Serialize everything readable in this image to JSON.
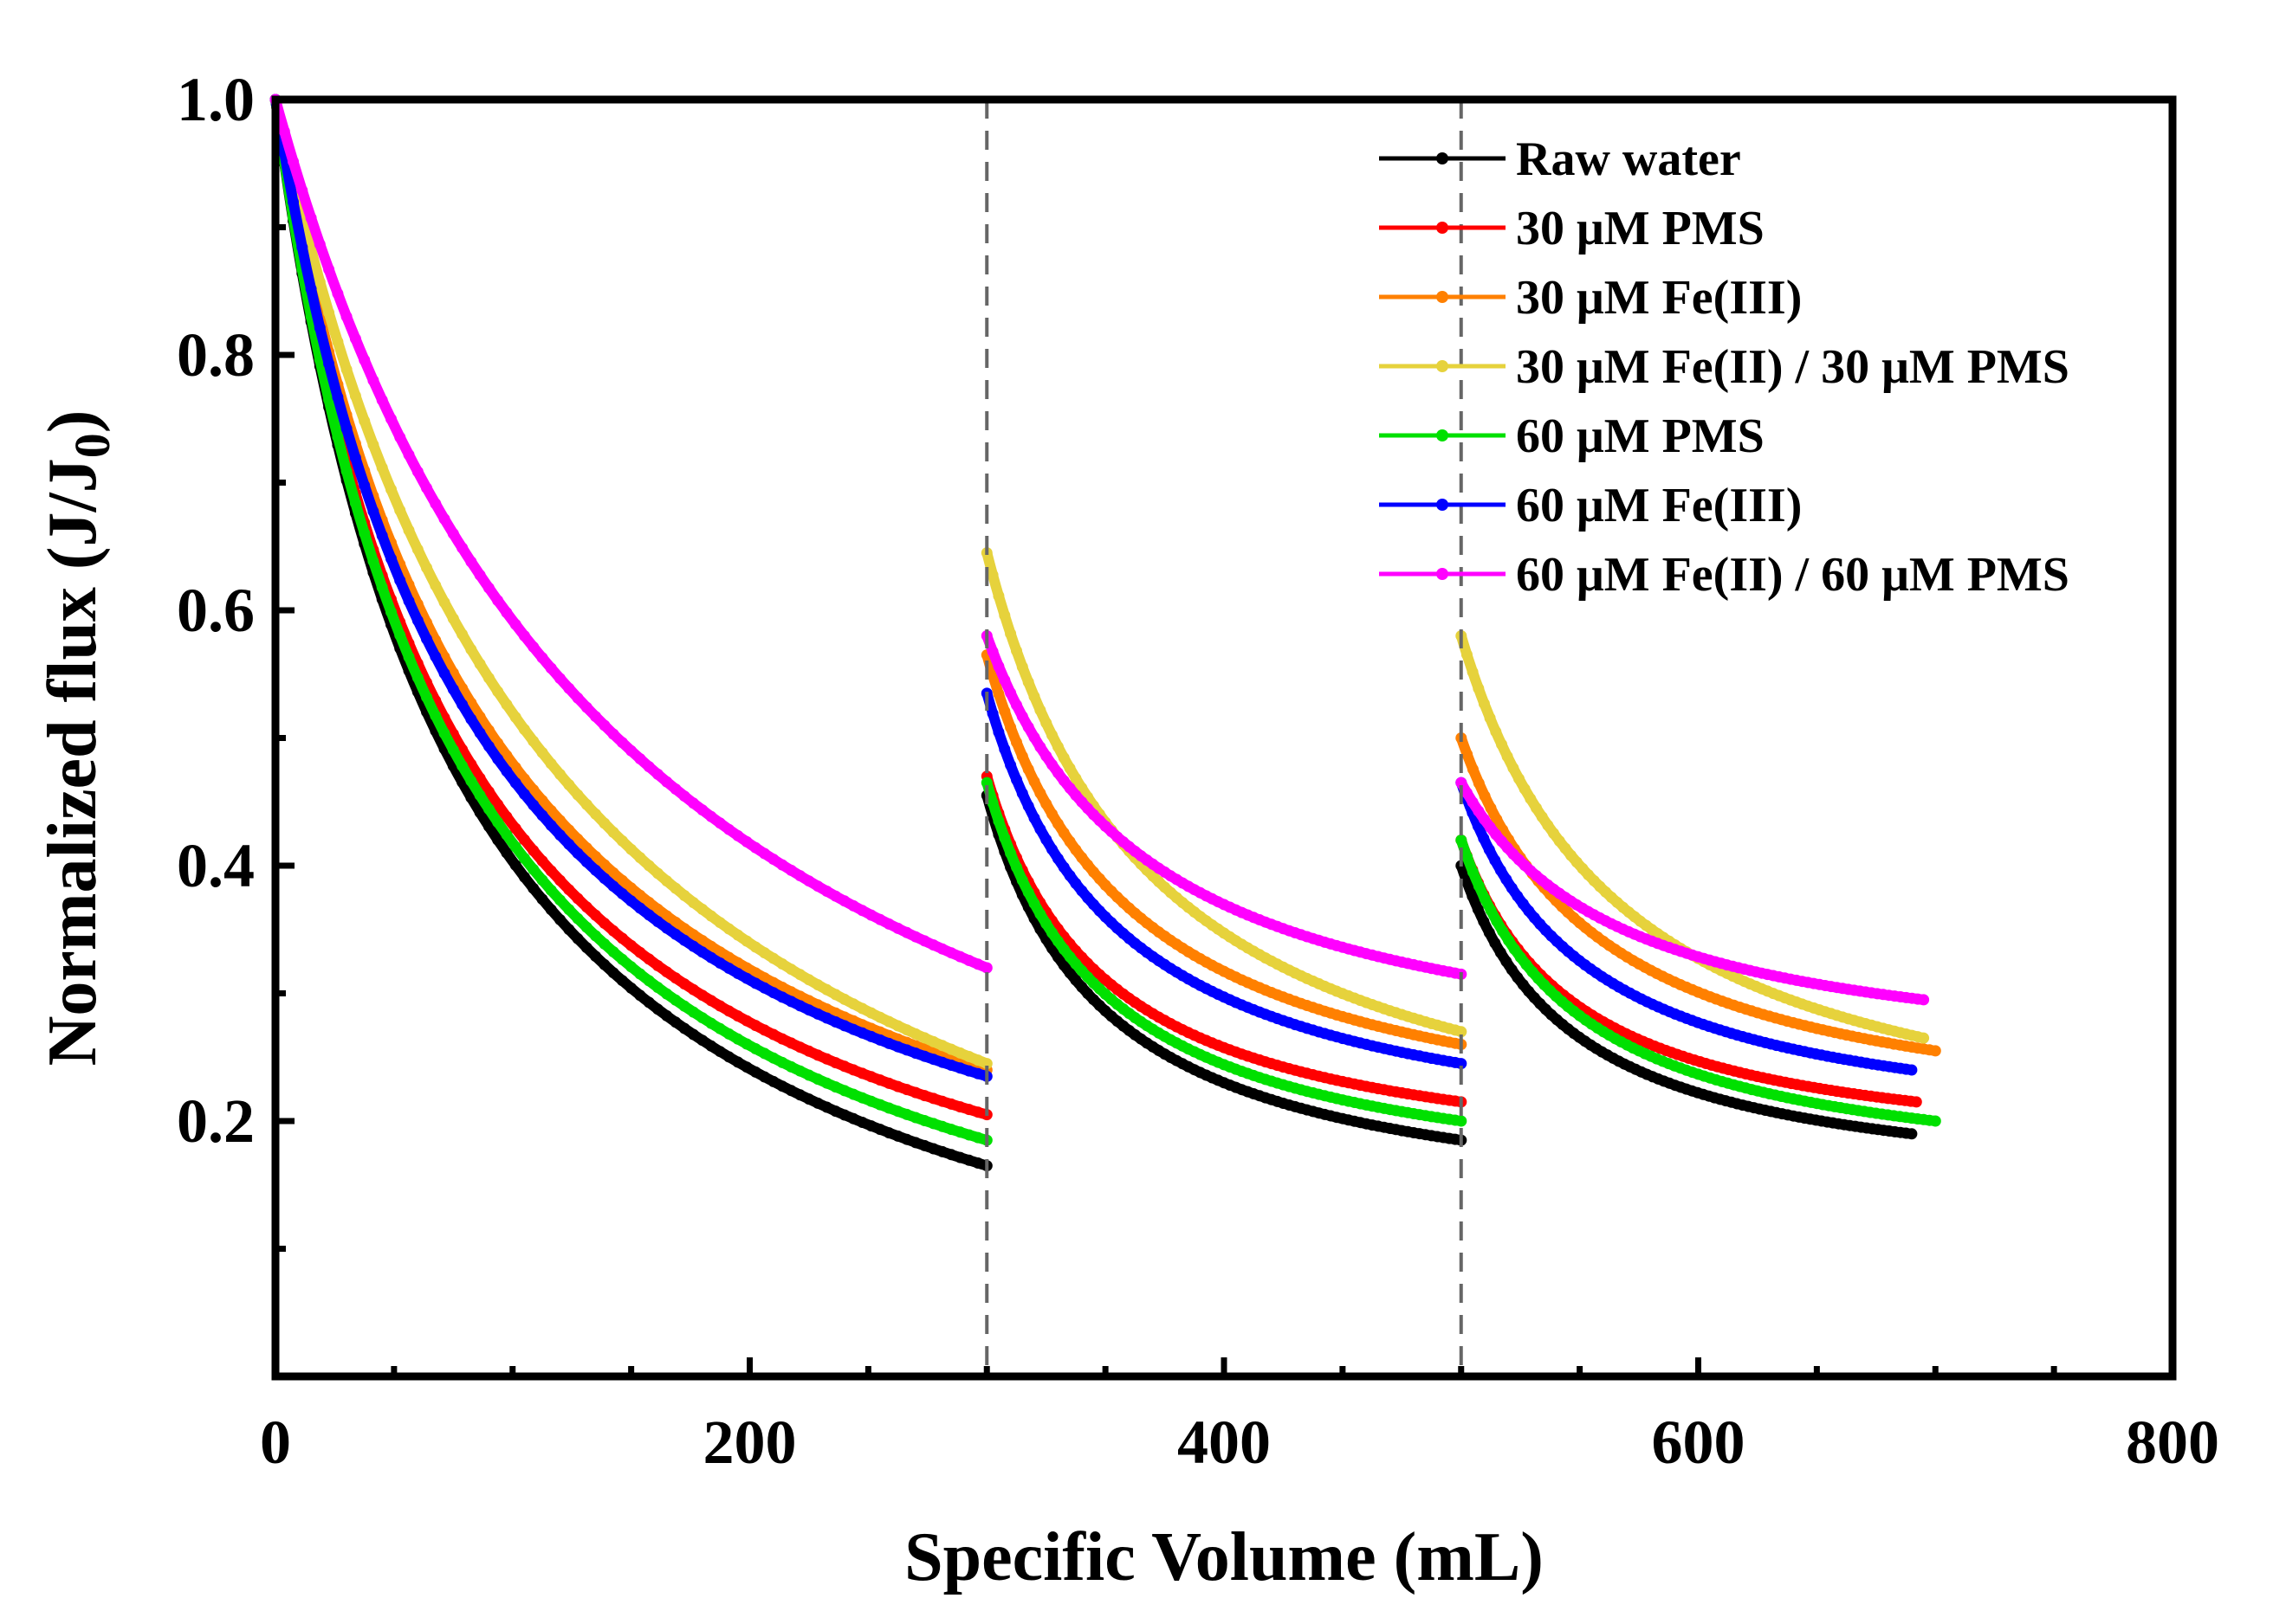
{
  "chart_data": {
    "type": "line",
    "title": "",
    "xlabel": "Specific Volume (mL)",
    "ylabel": "Normalized flux (J/J0)",
    "ylabel_main": "Normalized flux (J/J",
    "ylabel_sub": "0",
    "ylabel_close": ")",
    "xlim": [
      0,
      800
    ],
    "ylim": [
      0,
      1.0
    ],
    "x_ticks": [
      0,
      200,
      400,
      600,
      800
    ],
    "x_tick_labels": [
      "0",
      "200",
      "400",
      "600",
      "800"
    ],
    "y_ticks": [
      0.2,
      0.4,
      0.6,
      0.8,
      1.0
    ],
    "y_tick_labels": [
      "0.2",
      "0.4",
      "0.6",
      "0.8",
      "1.0"
    ],
    "x_minor_step": 50,
    "y_minor_step": 0.1,
    "vertical_dashed_lines": [
      300,
      500
    ],
    "legend_position": "top-right",
    "grid": false,
    "series": [
      {
        "name": "Raw water",
        "color": "#000000",
        "segments": [
          {
            "x_start": 0,
            "x_end": 300,
            "y_start": 1.0,
            "y_end": 0.165,
            "shape": 0.25
          },
          {
            "x_start": 300,
            "x_end": 500,
            "y_start": 0.455,
            "y_end": 0.185,
            "shape": 0.25
          },
          {
            "x_start": 500,
            "x_end": 690,
            "y_start": 0.4,
            "y_end": 0.19,
            "shape": 0.25
          }
        ]
      },
      {
        "name": "30 μM PMS",
        "color": "#ff0000",
        "segments": [
          {
            "x_start": 0,
            "x_end": 300,
            "y_start": 1.0,
            "y_end": 0.205,
            "shape": 0.25
          },
          {
            "x_start": 300,
            "x_end": 500,
            "y_start": 0.47,
            "y_end": 0.215,
            "shape": 0.25
          },
          {
            "x_start": 500,
            "x_end": 692,
            "y_start": 0.42,
            "y_end": 0.215,
            "shape": 0.25
          }
        ]
      },
      {
        "name": "30 μM Fe(III)",
        "color": "#ff8000",
        "segments": [
          {
            "x_start": 0,
            "x_end": 300,
            "y_start": 1.0,
            "y_end": 0.24,
            "shape": 0.3
          },
          {
            "x_start": 300,
            "x_end": 500,
            "y_start": 0.565,
            "y_end": 0.26,
            "shape": 0.3
          },
          {
            "x_start": 500,
            "x_end": 700,
            "y_start": 0.5,
            "y_end": 0.255,
            "shape": 0.3
          }
        ]
      },
      {
        "name": "30 μM Fe(II) / 30 μM PMS",
        "color": "#e6d23c",
        "segments": [
          {
            "x_start": 0,
            "x_end": 300,
            "y_start": 1.0,
            "y_end": 0.245,
            "shape": 0.4
          },
          {
            "x_start": 300,
            "x_end": 500,
            "y_start": 0.645,
            "y_end": 0.27,
            "shape": 0.35
          },
          {
            "x_start": 500,
            "x_end": 695,
            "y_start": 0.58,
            "y_end": 0.265,
            "shape": 0.35
          }
        ]
      },
      {
        "name": "60 μM PMS",
        "color": "#00e000",
        "segments": [
          {
            "x_start": 0,
            "x_end": 300,
            "y_start": 1.0,
            "y_end": 0.185,
            "shape": 0.25
          },
          {
            "x_start": 300,
            "x_end": 500,
            "y_start": 0.465,
            "y_end": 0.2,
            "shape": 0.25
          },
          {
            "x_start": 500,
            "x_end": 700,
            "y_start": 0.42,
            "y_end": 0.2,
            "shape": 0.25
          }
        ]
      },
      {
        "name": "60 μM Fe(III)",
        "color": "#0000ff",
        "segments": [
          {
            "x_start": 0,
            "x_end": 300,
            "y_start": 1.0,
            "y_end": 0.235,
            "shape": 0.28
          },
          {
            "x_start": 300,
            "x_end": 500,
            "y_start": 0.535,
            "y_end": 0.245,
            "shape": 0.28
          },
          {
            "x_start": 500,
            "x_end": 690,
            "y_start": 0.465,
            "y_end": 0.24,
            "shape": 0.28
          }
        ]
      },
      {
        "name": "60 μM Fe(II) / 60 μM PMS",
        "color": "#ff00ff",
        "segments": [
          {
            "x_start": 0,
            "x_end": 300,
            "y_start": 1.0,
            "y_end": 0.32,
            "shape": 0.5
          },
          {
            "x_start": 300,
            "x_end": 500,
            "y_start": 0.58,
            "y_end": 0.315,
            "shape": 0.35
          },
          {
            "x_start": 500,
            "x_end": 695,
            "y_start": 0.465,
            "y_end": 0.295,
            "shape": 0.35
          }
        ]
      }
    ]
  }
}
